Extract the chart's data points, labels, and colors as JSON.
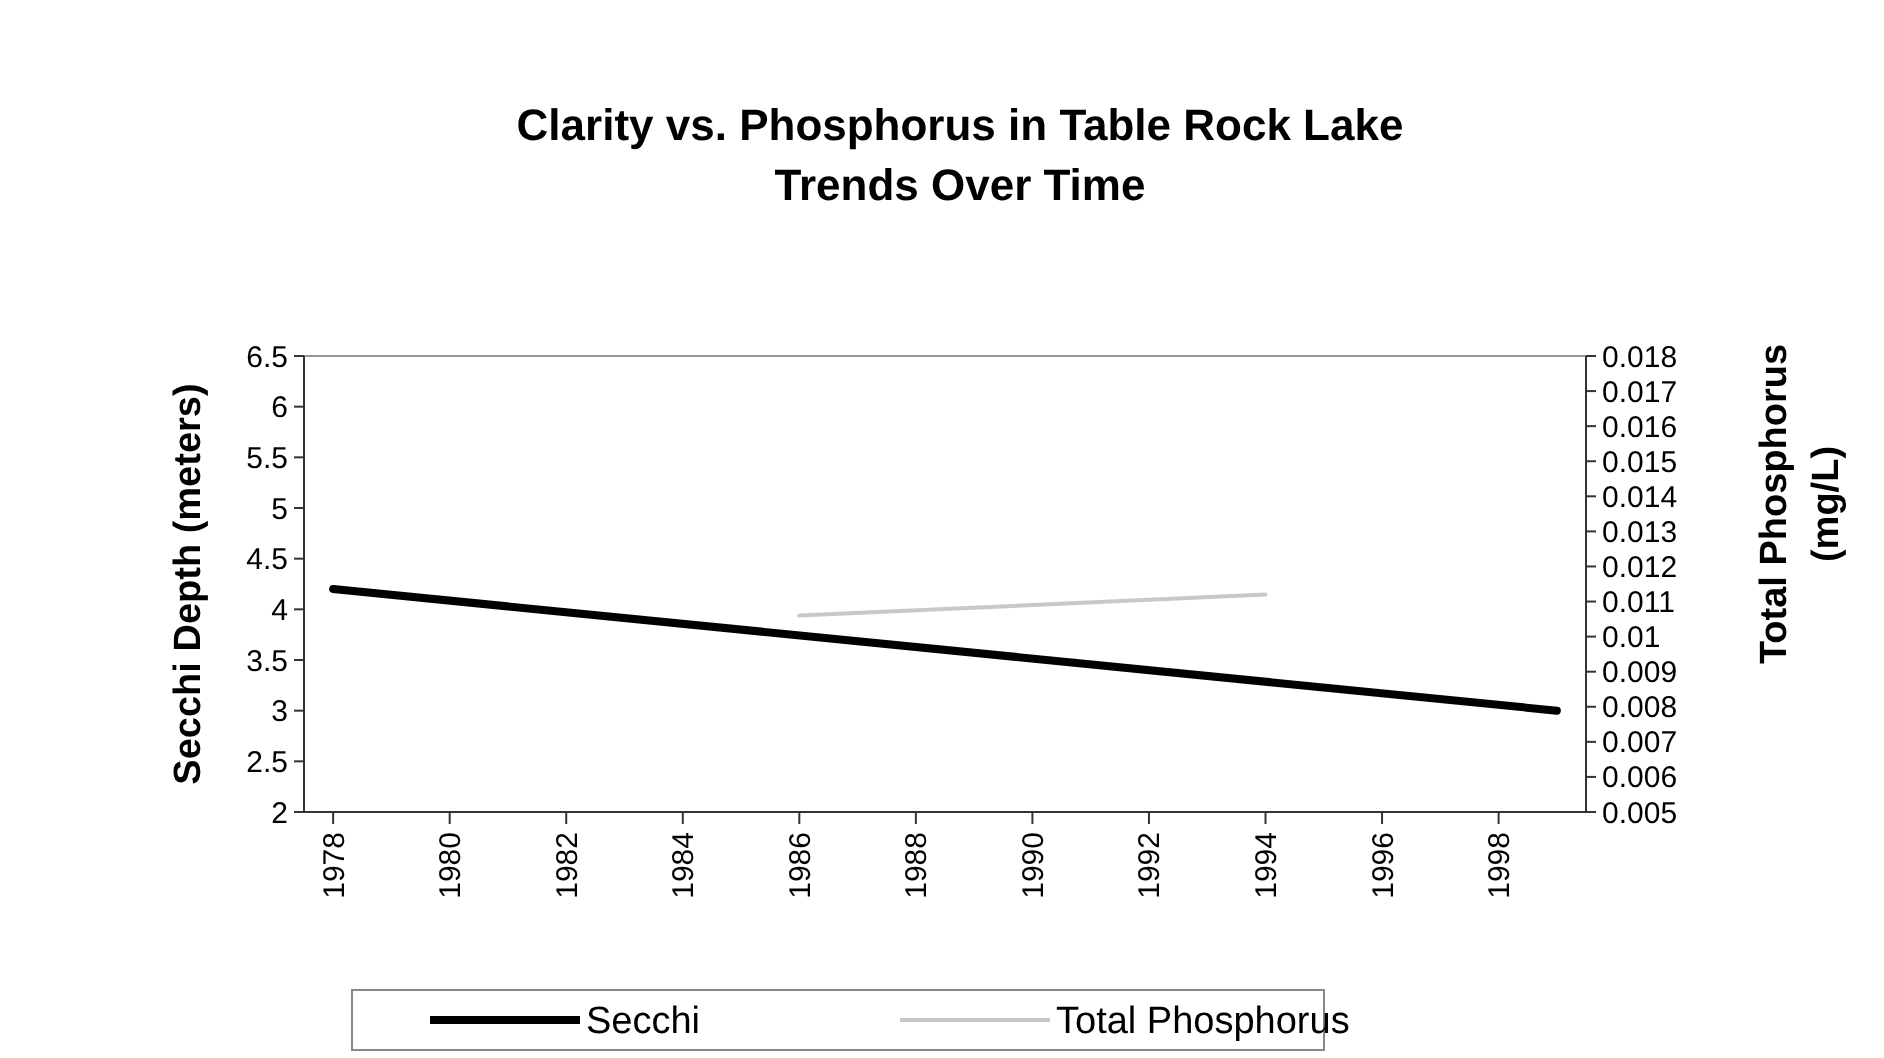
{
  "chart_data": {
    "type": "line",
    "title": "Clarity vs. Phosphorus in Table Rock Lake",
    "subtitle": "Trends Over Time",
    "ylabel": "Secchi Depth (meters)",
    "y2label": "Total Phosphorus (mg/L)",
    "xlim": [
      1977.5,
      1999.5
    ],
    "xticks": [
      1978,
      1980,
      1982,
      1984,
      1986,
      1988,
      1990,
      1992,
      1994,
      1996,
      1998
    ],
    "ylim": [
      2,
      6.5
    ],
    "yticks": [
      2,
      2.5,
      3,
      3.5,
      4,
      4.5,
      5,
      5.5,
      6,
      6.5
    ],
    "y2lim": [
      0.005,
      0.018
    ],
    "y2ticks": [
      0.005,
      0.006,
      0.007,
      0.008,
      0.009,
      0.01,
      0.011,
      0.012,
      0.013,
      0.014,
      0.015,
      0.016,
      0.017,
      0.018
    ],
    "series": [
      {
        "name": "Secchi",
        "color": "#000000",
        "x": [
          1978,
          1999
        ],
        "values": [
          4.2,
          3.0
        ]
      },
      {
        "name": "Total Phosphorus",
        "color": "#c8c8c8",
        "axis": "y2",
        "x": [
          1986,
          1994
        ],
        "values": [
          0.0106,
          0.0112
        ]
      }
    ],
    "grid": false,
    "legend": "bottom",
    "marker": "none",
    "line_style": "solid"
  }
}
